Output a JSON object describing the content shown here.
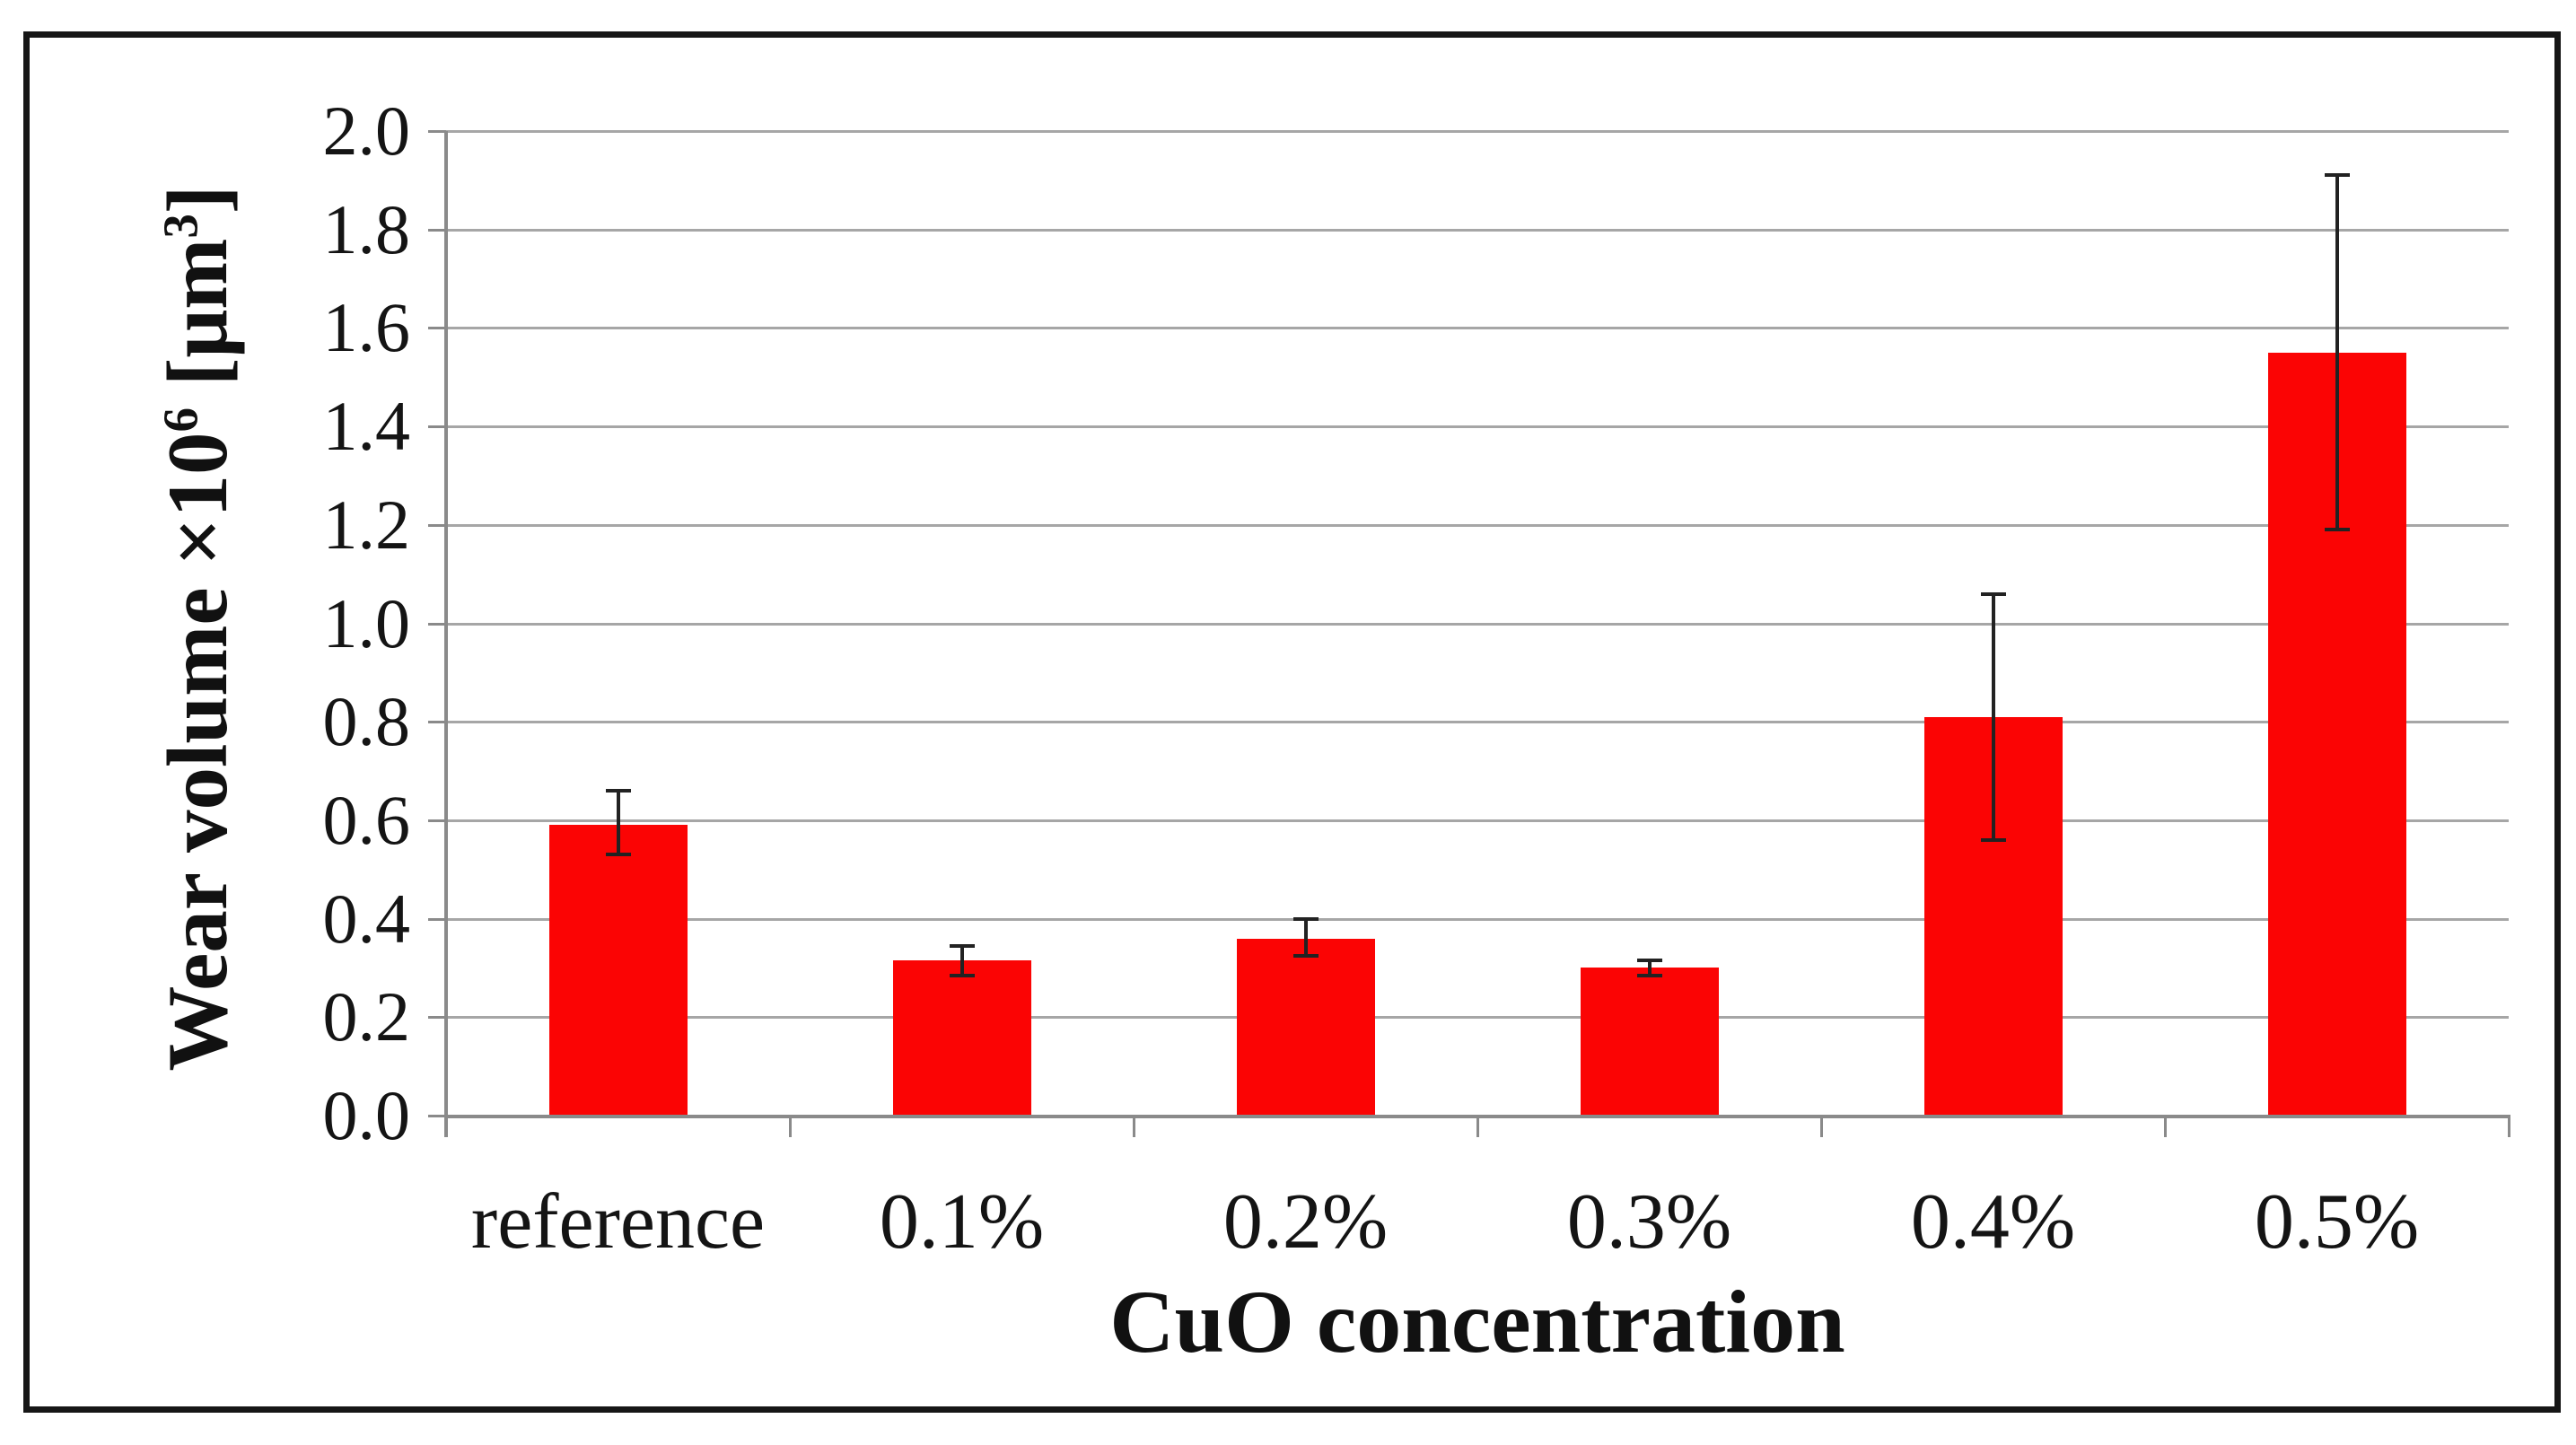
{
  "figure": {
    "background": "#ffffff",
    "border_color": "#161616"
  },
  "chart_data": {
    "type": "bar",
    "title": "",
    "xlabel": "CuO concentration",
    "ylabel": "Wear volume ×10⁶ [μm³]",
    "ylabel_parts": {
      "base1": "Wear volume ×10",
      "sup1": "6",
      "base2": " [μm",
      "sup2": "3",
      "base3": "]"
    },
    "categories": [
      "reference",
      "0.1%",
      "0.2%",
      "0.3%",
      "0.4%",
      "0.5%"
    ],
    "values": [
      0.59,
      0.315,
      0.36,
      0.3,
      0.81,
      1.55
    ],
    "error_high": [
      0.66,
      0.345,
      0.4,
      0.315,
      1.06,
      1.91
    ],
    "error_low": [
      0.53,
      0.285,
      0.325,
      0.285,
      0.56,
      1.19
    ],
    "ylim": [
      0.0,
      2.0
    ],
    "ytick_step": 0.2,
    "ytick_labels": [
      "0.0",
      "0.2",
      "0.4",
      "0.6",
      "0.8",
      "1.0",
      "1.2",
      "1.4",
      "1.6",
      "1.8",
      "2.0"
    ],
    "grid": true,
    "legend": "none",
    "bar_color": "#fb0404",
    "gridline_color": "#a6a6a6",
    "axis_color": "#8a8a8a",
    "error_bar_color": "#222222",
    "text_color": "#141414"
  }
}
